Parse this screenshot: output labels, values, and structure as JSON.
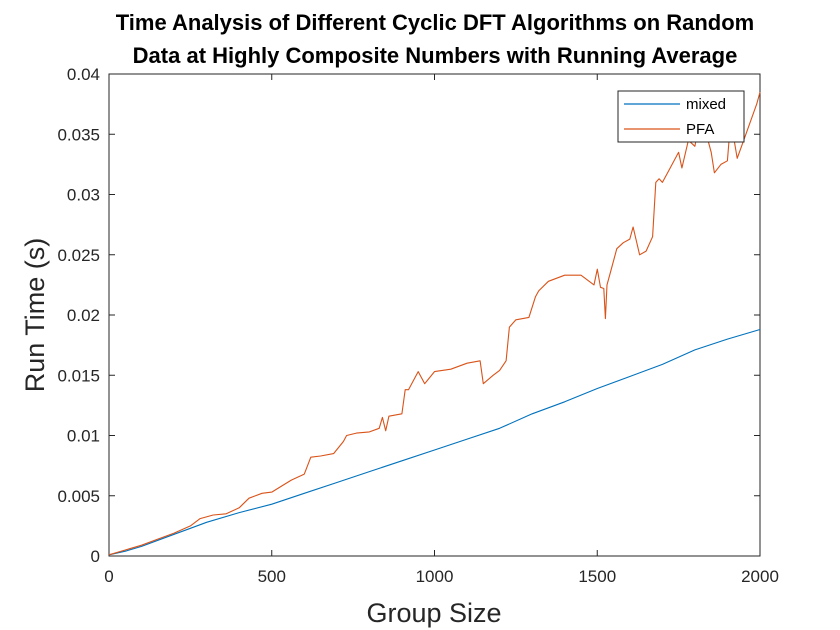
{
  "chart_data": {
    "type": "line",
    "title": [
      "Time Analysis of Different Cyclic DFT Algorithms on Random",
      "Data at Highly Composite Numbers with Running Average"
    ],
    "xlabel": "Group Size",
    "ylabel": "Run Time (s)",
    "xlim": [
      0,
      2000
    ],
    "ylim": [
      0,
      0.04
    ],
    "xticks": [
      0,
      500,
      1000,
      1500,
      2000
    ],
    "xtick_labels": [
      "0",
      "500",
      "1000",
      "1500",
      "2000"
    ],
    "yticks": [
      0,
      0.005,
      0.01,
      0.015,
      0.02,
      0.025,
      0.03,
      0.035,
      0.04
    ],
    "ytick_labels": [
      "0",
      "0.005",
      "0.01",
      "0.015",
      "0.02",
      "0.025",
      "0.03",
      "0.035",
      "0.04"
    ],
    "grid": false,
    "legend_position": "top-right",
    "series": [
      {
        "name": "mixed",
        "color": "#0072BD",
        "x": [
          0,
          50,
          100,
          150,
          200,
          250,
          300,
          400,
          500,
          600,
          700,
          800,
          900,
          1000,
          1100,
          1200,
          1300,
          1400,
          1500,
          1600,
          1700,
          1800,
          1900,
          2000
        ],
        "y": [
          0.0001,
          0.0004,
          0.0008,
          0.0013,
          0.0018,
          0.0023,
          0.0028,
          0.0036,
          0.0043,
          0.0052,
          0.0061,
          0.007,
          0.0079,
          0.0088,
          0.0097,
          0.0106,
          0.0118,
          0.0128,
          0.0139,
          0.0149,
          0.0159,
          0.0171,
          0.018,
          0.0188
        ]
      },
      {
        "name": "PFA",
        "color": "#D95319",
        "x": [
          0,
          50,
          100,
          150,
          200,
          250,
          280,
          320,
          360,
          400,
          430,
          470,
          500,
          530,
          560,
          600,
          620,
          650,
          690,
          720,
          730,
          760,
          800,
          830,
          840,
          850,
          860,
          900,
          910,
          920,
          950,
          970,
          1000,
          1050,
          1100,
          1140,
          1150,
          1180,
          1200,
          1220,
          1230,
          1250,
          1290,
          1310,
          1320,
          1350,
          1400,
          1450,
          1490,
          1500,
          1510,
          1520,
          1525,
          1530,
          1540,
          1560,
          1580,
          1600,
          1610,
          1630,
          1650,
          1670,
          1680,
          1690,
          1700,
          1720,
          1750,
          1760,
          1780,
          1800,
          1810,
          1830,
          1850,
          1860,
          1880,
          1900,
          1910,
          1930,
          1950,
          1970,
          1990,
          2000
        ],
        "y": [
          0.0001,
          0.0005,
          0.0009,
          0.0014,
          0.0019,
          0.0025,
          0.0031,
          0.0034,
          0.0035,
          0.004,
          0.0048,
          0.0052,
          0.0053,
          0.0058,
          0.0063,
          0.0068,
          0.0082,
          0.0083,
          0.0085,
          0.0095,
          0.01,
          0.0102,
          0.0103,
          0.0106,
          0.0115,
          0.0104,
          0.0116,
          0.0118,
          0.0138,
          0.0138,
          0.0153,
          0.0143,
          0.0153,
          0.0155,
          0.016,
          0.0162,
          0.0143,
          0.015,
          0.0154,
          0.0162,
          0.019,
          0.0196,
          0.0198,
          0.0215,
          0.022,
          0.0228,
          0.0233,
          0.0233,
          0.0225,
          0.0238,
          0.0223,
          0.0222,
          0.0197,
          0.0225,
          0.0235,
          0.0255,
          0.026,
          0.0263,
          0.0273,
          0.025,
          0.0253,
          0.0265,
          0.031,
          0.0313,
          0.031,
          0.032,
          0.0335,
          0.0322,
          0.0345,
          0.034,
          0.0355,
          0.0355,
          0.0335,
          0.0318,
          0.0325,
          0.0328,
          0.0362,
          0.033,
          0.0345,
          0.036,
          0.0375,
          0.0385
        ]
      }
    ]
  }
}
